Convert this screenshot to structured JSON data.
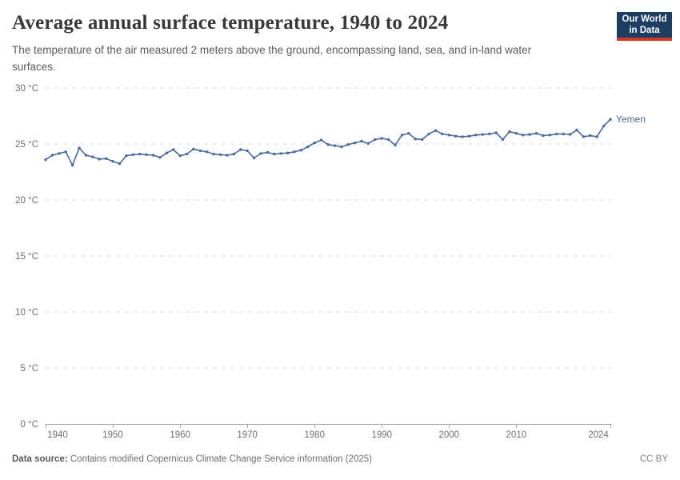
{
  "header": {
    "title": "Average annual surface temperature, 1940 to 2024",
    "subtitle": "The temperature of the air measured 2 meters above the ground, encompassing land, sea, and in-land water surfaces.",
    "logo": {
      "line1": "Our World",
      "line2": "in Data"
    }
  },
  "chart_data": {
    "type": "line",
    "title": "Average annual surface temperature, 1940 to 2024",
    "subtitle": "The temperature of the air measured 2 meters above the ground, encompassing land, sea, and in-land water surfaces.",
    "entity_label": "Yemen",
    "xlabel": "",
    "ylabel": "",
    "y_unit": "°C",
    "ylim": [
      0,
      30
    ],
    "xlim": [
      1940,
      2024
    ],
    "y_ticks": [
      0,
      5,
      10,
      15,
      20,
      25,
      30
    ],
    "y_tick_labels": [
      "0 °C",
      "5 °C",
      "10 °C",
      "15 °C",
      "20 °C",
      "25 °C",
      "30 °C"
    ],
    "x_ticks": [
      1940,
      1950,
      1960,
      1970,
      1980,
      1990,
      2000,
      2010,
      2024
    ],
    "grid": "horizontal-dashed",
    "legend_position": "end-of-line",
    "marker": "dot",
    "years": {
      "start": 1940,
      "end": 2024,
      "step": 1
    },
    "series": [
      {
        "name": "Yemen",
        "color": "#4c6a9c",
        "values": [
          23.6,
          24.0,
          24.15,
          24.3,
          23.1,
          24.65,
          24.0,
          23.85,
          23.65,
          23.7,
          23.45,
          23.25,
          23.95,
          24.05,
          24.1,
          24.05,
          24.0,
          23.8,
          24.2,
          24.5,
          23.95,
          24.1,
          24.55,
          24.4,
          24.3,
          24.1,
          24.05,
          24.0,
          24.1,
          24.5,
          24.4,
          23.75,
          24.15,
          24.25,
          24.1,
          24.15,
          24.2,
          24.3,
          24.45,
          24.75,
          25.1,
          25.35,
          24.95,
          24.85,
          24.75,
          24.95,
          25.1,
          25.25,
          25.05,
          25.4,
          25.5,
          25.4,
          24.9,
          25.8,
          25.95,
          25.45,
          25.4,
          25.9,
          26.2,
          25.9,
          25.8,
          25.7,
          25.65,
          25.7,
          25.8,
          25.85,
          25.9,
          26.0,
          25.4,
          26.1,
          25.95,
          25.8,
          25.85,
          25.95,
          25.75,
          25.8,
          25.9,
          25.9,
          25.85,
          26.25,
          25.65,
          25.75,
          25.65,
          26.6,
          27.2
        ]
      }
    ]
  },
  "footer": {
    "source_label": "Data source:",
    "source_text": " Contains modified Copernicus Climate Change Service information (2025)",
    "license": "CC BY"
  },
  "colors": {
    "line": "#4c6a9c",
    "grid": "#dadada",
    "axis": "#a8a8a8",
    "tick_label": "#6f6f6f",
    "title": "#383838",
    "subtitle": "#5b5b5b",
    "logo_bg": "#1d3d63",
    "logo_stripe": "#d8352b"
  }
}
